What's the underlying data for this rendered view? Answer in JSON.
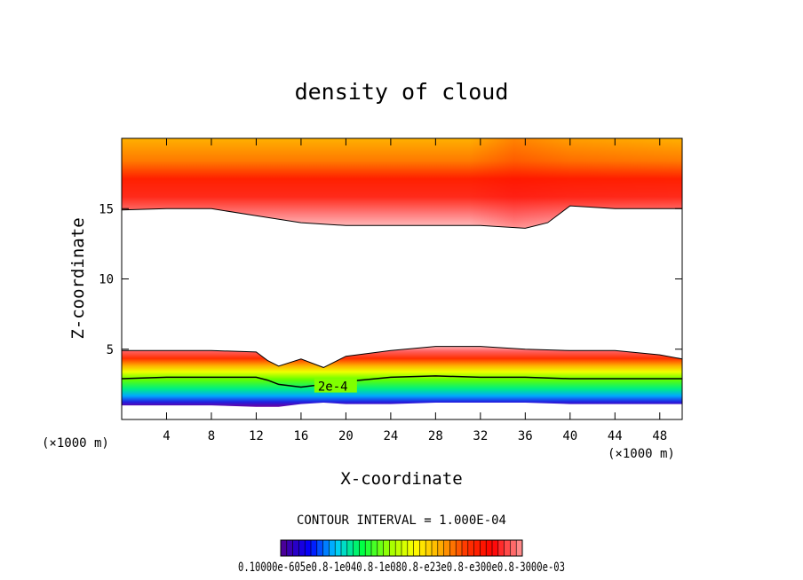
{
  "chart_data": {
    "type": "heatmap",
    "title": "density of cloud",
    "xlabel": "X-coordinate",
    "ylabel": "Z-coordinate",
    "x_unit": "(×1000 m)",
    "z_unit": "(×1000 m)",
    "xlim": [
      0,
      50
    ],
    "ylim": [
      0,
      20
    ],
    "x_ticks": [
      "4",
      "8",
      "12",
      "16",
      "20",
      "24",
      "28",
      "32",
      "36",
      "40",
      "44",
      "48"
    ],
    "x_tick_values": [
      4,
      8,
      12,
      16,
      20,
      24,
      28,
      32,
      36,
      40,
      44,
      48
    ],
    "y_ticks": [
      "5",
      "10",
      "15"
    ],
    "y_tick_values": [
      5,
      10,
      15
    ],
    "contour_interval_label": "CONTOUR INTERVAL = 1.000E-04",
    "contour_labels": [
      {
        "text": "2e-4",
        "x": 17.5,
        "z": 2.3
      }
    ],
    "colorbar": {
      "min": 0.0001,
      "max": 0.0013,
      "colors": [
        "#4a0099",
        "#0000ff",
        "#00ccff",
        "#00ff44",
        "#99ff00",
        "#ffff00",
        "#ffaa00",
        "#ff3300",
        "#ff0000",
        "#ff8888"
      ],
      "tick_labels_text": "0.10000e-605e0.8-1e040.8-1e080.8-e23e0.8-e300e0.8-3000e-03"
    },
    "upper_layer": {
      "x": [
        0,
        4,
        8,
        12,
        16,
        20,
        24,
        28,
        32,
        36,
        38,
        40,
        44,
        48,
        50
      ],
      "z_bottom": [
        14.9,
        15.0,
        15.0,
        14.5,
        14.0,
        13.8,
        13.8,
        13.8,
        13.8,
        13.6,
        14.0,
        15.2,
        15.0,
        15.0,
        15.0
      ],
      "z_top": 20
    },
    "lower_layer": {
      "x": [
        0,
        4,
        8,
        12,
        13,
        14,
        16,
        18,
        20,
        24,
        28,
        32,
        36,
        40,
        44,
        48,
        50
      ],
      "z_top": [
        4.9,
        4.9,
        4.9,
        4.8,
        4.2,
        3.8,
        4.3,
        3.7,
        4.5,
        4.9,
        5.2,
        5.2,
        5.0,
        4.9,
        4.9,
        4.6,
        4.3
      ],
      "z_2e4": [
        2.9,
        3.0,
        3.0,
        3.0,
        2.8,
        2.5,
        2.3,
        2.5,
        2.7,
        3.0,
        3.1,
        3.0,
        3.0,
        2.9,
        2.9,
        2.9,
        2.9
      ],
      "z_bottom": [
        1.0,
        1.0,
        1.0,
        0.9,
        0.9,
        0.9,
        1.1,
        1.2,
        1.1,
        1.1,
        1.2,
        1.2,
        1.2,
        1.1,
        1.1,
        1.1,
        1.1
      ]
    }
  }
}
